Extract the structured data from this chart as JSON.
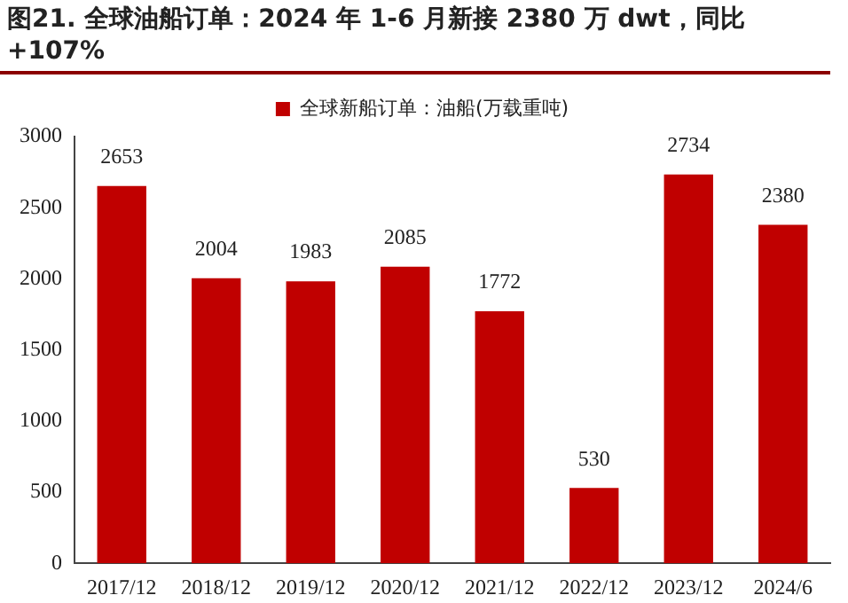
{
  "chart_data": {
    "type": "bar",
    "title": "图21. 全球油船订单：2024 年 1-6 月新接 2380 万 dwt，同比+107%",
    "categories": [
      "2017/12",
      "2018/12",
      "2019/12",
      "2020/12",
      "2021/12",
      "2022/12",
      "2023/12",
      "2024/6"
    ],
    "series": [
      {
        "name": "全球新船订单：油船(万载重吨)",
        "color": "#c00000",
        "values": [
          2653,
          2004,
          1983,
          2085,
          1772,
          530,
          2734,
          2380
        ]
      }
    ],
    "ylim": [
      0,
      3000
    ],
    "yticks": [
      0,
      500,
      1000,
      1500,
      2000,
      2500,
      3000
    ],
    "grid": false,
    "legend": "top",
    "data_labels": true
  }
}
